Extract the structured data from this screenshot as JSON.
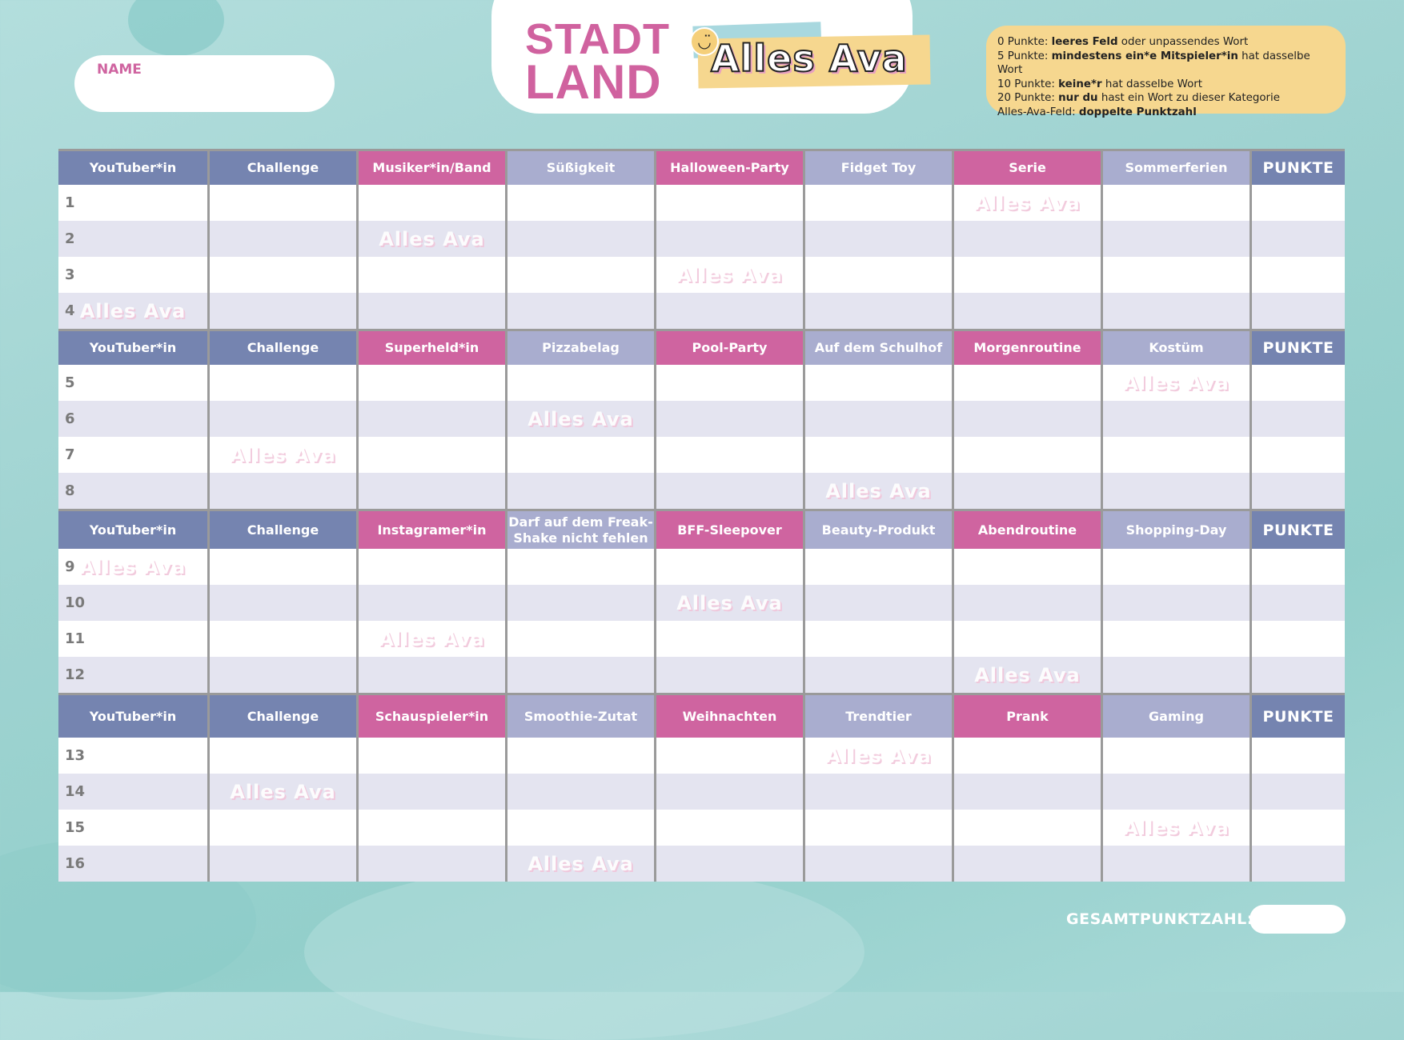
{
  "name_field": {
    "label": "NAME",
    "value": ""
  },
  "title": {
    "line1": "STADT",
    "line2": "LAND",
    "logo_text": "Alles Ava"
  },
  "rules": [
    {
      "prefix": "0 Punkte: ",
      "bold": "leeres Feld",
      "suffix": " oder unpassendes Wort"
    },
    {
      "prefix": "5 Punkte: ",
      "bold": "mindestens ein*e Mitspieler*in",
      "suffix": " hat dasselbe Wort"
    },
    {
      "prefix": "10 Punkte: ",
      "bold": "keine*r",
      "suffix": " hat dasselbe Wort"
    },
    {
      "prefix": "20 Punkte: ",
      "bold": "nur du",
      "suffix": " hast ein Wort zu dieser Kategorie"
    },
    {
      "prefix": "Alles-Ava-Feld: ",
      "bold": "doppelte Punktzahl",
      "suffix": ""
    }
  ],
  "colors": {
    "blue": "#7584b0",
    "pink": "#cf64a0",
    "lavender": "#a9adcf",
    "background": "#9fd3d1",
    "rules_box": "#f6d78f"
  },
  "header_colors": [
    "blue",
    "blue",
    "pink",
    "lav",
    "pink",
    "lav",
    "pink",
    "lav",
    "punkte"
  ],
  "watermark_text": "Alles Ava",
  "sections": [
    {
      "headers": [
        "YouTuber*in",
        "Challenge",
        "Musiker*in/Band",
        "Süßigkeit",
        "Halloween-Party",
        "Fidget Toy",
        "Serie",
        "Sommerferien",
        "PUNKTE"
      ],
      "rows": [
        {
          "num": "1",
          "alles_ava_col": 7
        },
        {
          "num": "2",
          "alles_ava_col": 3
        },
        {
          "num": "3",
          "alles_ava_col": 5
        },
        {
          "num": "4",
          "alles_ava_col": 1
        }
      ]
    },
    {
      "headers": [
        "YouTuber*in",
        "Challenge",
        "Superheld*in",
        "Pizzabelag",
        "Pool-Party",
        "Auf dem Schulhof",
        "Morgenroutine",
        "Kostüm",
        "PUNKTE"
      ],
      "rows": [
        {
          "num": "5",
          "alles_ava_col": 8
        },
        {
          "num": "6",
          "alles_ava_col": 4
        },
        {
          "num": "7",
          "alles_ava_col": 2
        },
        {
          "num": "8",
          "alles_ava_col": 6
        }
      ]
    },
    {
      "headers": [
        "YouTuber*in",
        "Challenge",
        "Instagramer*in",
        "Darf auf dem Freak-Shake nicht fehlen",
        "BFF-Sleepover",
        "Beauty-Produkt",
        "Abendroutine",
        "Shopping-Day",
        "PUNKTE"
      ],
      "rows": [
        {
          "num": "9",
          "alles_ava_col": 1
        },
        {
          "num": "10",
          "alles_ava_col": 5
        },
        {
          "num": "11",
          "alles_ava_col": 3
        },
        {
          "num": "12",
          "alles_ava_col": 7
        }
      ]
    },
    {
      "headers": [
        "YouTuber*in",
        "Challenge",
        "Schauspieler*in",
        "Smoothie-Zutat",
        "Weihnachten",
        "Trendtier",
        "Prank",
        "Gaming",
        "PUNKTE"
      ],
      "rows": [
        {
          "num": "13",
          "alles_ava_col": 6
        },
        {
          "num": "14",
          "alles_ava_col": 2
        },
        {
          "num": "15",
          "alles_ava_col": 8
        },
        {
          "num": "16",
          "alles_ava_col": 4
        }
      ]
    }
  ],
  "total": {
    "label": "GESAMTPUNKTZAHL:",
    "value": ""
  }
}
